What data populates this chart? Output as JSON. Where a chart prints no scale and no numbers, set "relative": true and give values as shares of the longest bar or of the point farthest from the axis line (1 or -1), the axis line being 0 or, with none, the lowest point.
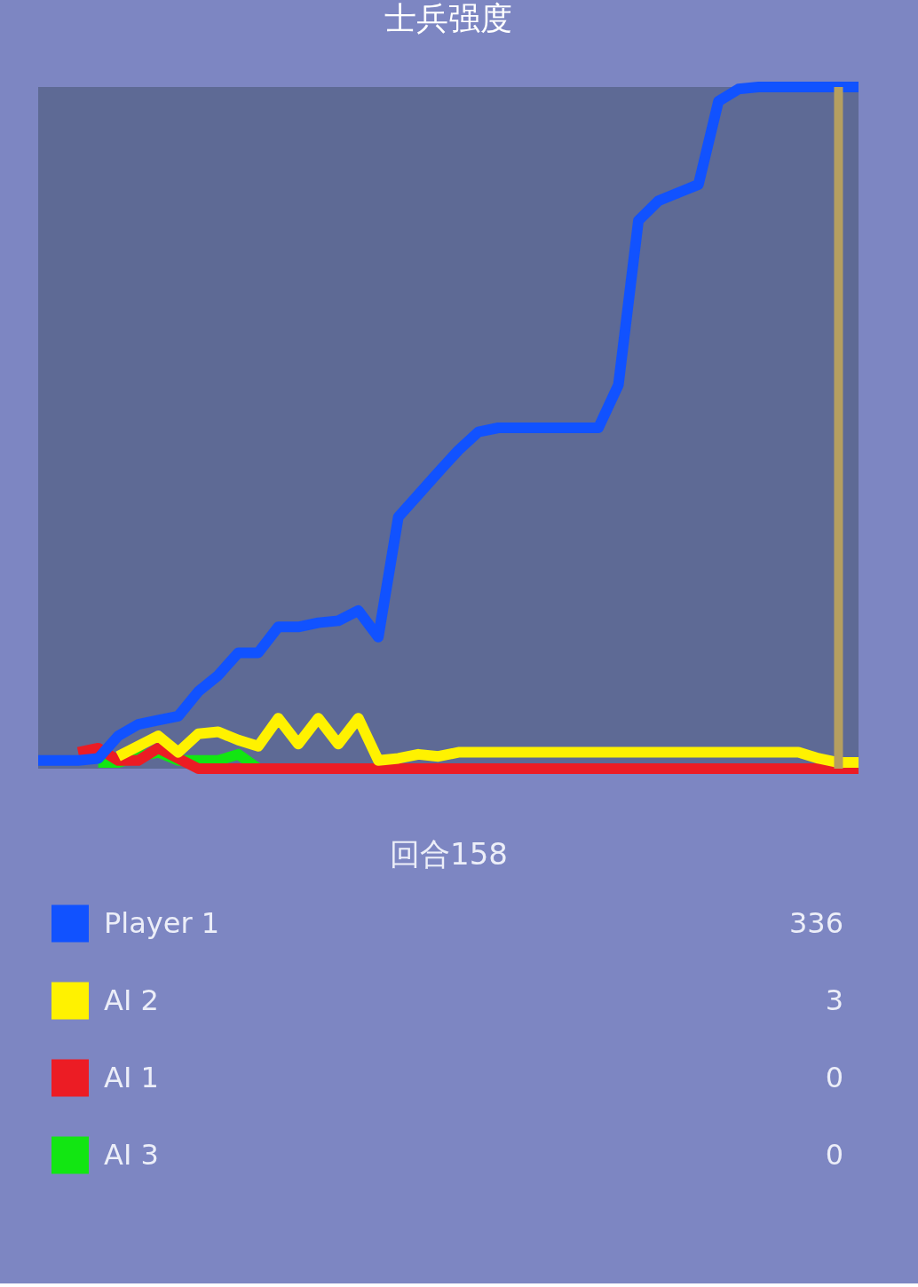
{
  "chart_data": {
    "type": "line",
    "title": "士兵强度",
    "xlabel": "回合158",
    "relative": true,
    "categories": [
      null,
      null,
      null,
      null,
      null,
      null,
      null,
      null,
      null,
      null,
      null,
      null,
      null,
      null,
      null,
      null,
      null,
      null,
      null,
      null,
      null,
      null,
      null,
      null,
      null,
      null,
      null,
      null,
      null,
      null,
      null,
      null,
      null,
      null,
      null,
      null,
      null,
      null,
      null,
      null,
      null,
      null
    ],
    "series": [
      {
        "name": "Player 1",
        "color": "#1152ff",
        "values": [
          0.012,
          0.012,
          0.012,
          0.015,
          0.048,
          0.065,
          0.071,
          0.077,
          0.113,
          0.137,
          0.17,
          0.17,
          0.208,
          0.208,
          0.214,
          0.217,
          0.232,
          0.193,
          0.369,
          0.402,
          0.435,
          0.467,
          0.494,
          0.5,
          0.5,
          0.5,
          0.5,
          0.5,
          0.5,
          0.563,
          0.804,
          0.833,
          0.845,
          0.857,
          0.979,
          0.997,
          1,
          1,
          1,
          1,
          1,
          1
        ]
      },
      {
        "name": "AI 2",
        "color": "#fff200",
        "values": [
          null,
          null,
          null,
          null,
          0.018,
          0.033,
          0.048,
          0.024,
          0.051,
          0.054,
          0.042,
          0.033,
          0.074,
          0.036,
          0.074,
          0.036,
          0.074,
          0.012,
          0.015,
          0.021,
          0.018,
          0.024,
          0.024,
          0.024,
          0.024,
          0.024,
          0.024,
          0.024,
          0.024,
          0.024,
          0.024,
          0.024,
          0.024,
          0.024,
          0.024,
          0.024,
          0.024,
          0.024,
          0.024,
          0.015,
          0.009,
          0.009
        ]
      },
      {
        "name": "AI 1",
        "color": "#ec1c24",
        "values": [
          null,
          null,
          0.024,
          0.03,
          0.012,
          0.012,
          0.03,
          0.015,
          0,
          0,
          0,
          0,
          0,
          0,
          0,
          0,
          0,
          0,
          0,
          0,
          0,
          0,
          0,
          0,
          0,
          0,
          0,
          0,
          0,
          0,
          0,
          0,
          0,
          0,
          0,
          0,
          0,
          0,
          0,
          0,
          0,
          0
        ]
      },
      {
        "name": "AI 3",
        "color": "#12e612",
        "values": [
          null,
          null,
          null,
          0.009,
          0.009,
          0.018,
          0.024,
          0.012,
          0.012,
          0.012,
          0.021,
          0,
          null,
          null,
          null,
          null,
          null,
          null,
          null,
          null,
          null,
          null,
          null,
          null,
          null,
          null,
          null,
          null,
          null,
          null,
          null,
          null,
          null,
          null,
          null,
          null,
          null,
          null,
          null,
          null,
          null,
          null
        ]
      }
    ],
    "tick_labels": false,
    "legend": "bottom",
    "annotations": [
      "336",
      "3",
      "0",
      "0"
    ]
  }
}
